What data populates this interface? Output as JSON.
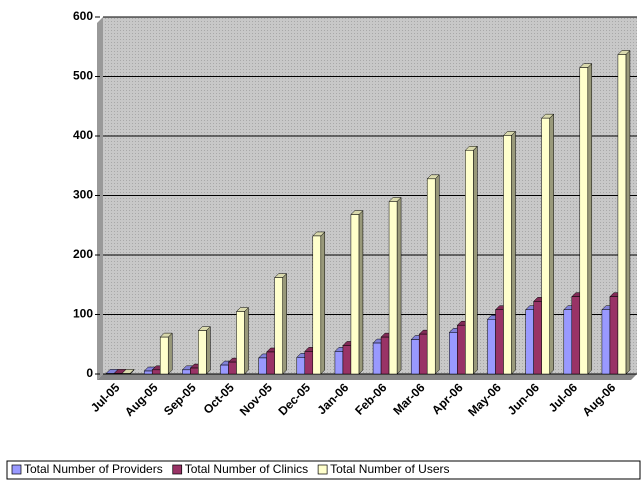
{
  "chart_data": {
    "type": "bar",
    "categories": [
      "Jul-05",
      "Aug-05",
      "Sep-05",
      "Oct-05",
      "Nov-05",
      "Dec-05",
      "Jan-06",
      "Feb-06",
      "Mar-06",
      "Apr-06",
      "May-06",
      "Jun-06",
      "Jul-06",
      "Aug-06"
    ],
    "series": [
      {
        "name": "Total Number of Providers",
        "color": "#9999ff",
        "values": [
          1,
          5,
          7,
          15,
          27,
          28,
          38,
          52,
          58,
          70,
          92,
          108,
          108,
          108
        ]
      },
      {
        "name": "Total Number of Clinics",
        "color": "#993366",
        "values": [
          1,
          7,
          10,
          20,
          37,
          38,
          48,
          62,
          67,
          82,
          108,
          122,
          130,
          130
        ]
      },
      {
        "name": "Total Number of Users",
        "color": "#ffffcc",
        "values": [
          1,
          62,
          73,
          105,
          162,
          232,
          268,
          290,
          328,
          376,
          401,
          430,
          515,
          537
        ]
      }
    ],
    "ylim": [
      0,
      600
    ],
    "yticks": [
      0,
      100,
      200,
      300,
      400,
      500,
      600
    ],
    "grid": true,
    "legend": "bottom"
  }
}
